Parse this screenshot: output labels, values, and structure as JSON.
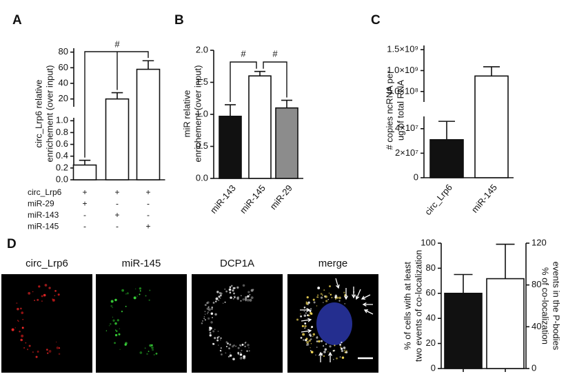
{
  "chart_data": [
    {
      "type": "bar",
      "panel_label": "A",
      "ylabel": [
        "circ_Lrp6 relative",
        "enrichement (over input)"
      ],
      "axis_segments": [
        {
          "ylim": [
            0,
            1.05
          ],
          "yticks": [
            {
              "value": 0,
              "label": "0.0"
            },
            0.2,
            0.4,
            0.6,
            0.8,
            {
              "value": 1,
              "label": "1.0"
            }
          ]
        },
        {
          "ylim": [
            10,
            85
          ],
          "yticks": [
            20,
            40,
            60,
            80
          ]
        }
      ],
      "series": [
        {
          "values": [
            0.25,
            20,
            58
          ],
          "errors": [
            0.08,
            8,
            11
          ],
          "color": "#ffffff"
        }
      ],
      "annotations": [
        "#"
      ],
      "condition_table": {
        "rows": [
          {
            "label": "circ_Lrp6",
            "cells": [
              "+",
              "+",
              "+"
            ]
          },
          {
            "label": "miR-29",
            "cells": [
              "+",
              "-",
              "-"
            ]
          },
          {
            "label": "miR-143",
            "cells": [
              "-",
              "+",
              "-"
            ]
          },
          {
            "label": "miR-145",
            "cells": [
              "-",
              "-",
              "+"
            ]
          }
        ]
      }
    },
    {
      "type": "bar",
      "panel_label": "B",
      "ylabel": [
        "miR relative",
        "enrichement (over input)"
      ],
      "categories": [
        "miR-143",
        "miR-145",
        "miR-29"
      ],
      "ylim": [
        0,
        2
      ],
      "yticks": [
        {
          "value": 0,
          "label": "0.0"
        },
        0.5,
        {
          "value": 1,
          "label": "1.0"
        },
        1.5,
        {
          "value": 2,
          "label": "2.0"
        }
      ],
      "series": [
        {
          "values": [
            0.97,
            1.6,
            1.1
          ],
          "errors": [
            0.18,
            0.07,
            0.12
          ],
          "colors": [
            "#111111",
            "#ffffff",
            "#8c8c8c"
          ]
        }
      ],
      "annotations": [
        "#",
        "#"
      ]
    },
    {
      "type": "bar",
      "panel_label": "C",
      "ylabel": [
        "# copies ncRNA per",
        "ug of total RNA"
      ],
      "categories": [
        "circ_Lrp6",
        "miR-145"
      ],
      "axis_segments": [
        {
          "ylim": [
            0,
            50000000
          ],
          "yticks": [
            0,
            {
              "value": 20000000,
              "label": "2×10⁷"
            },
            {
              "value": 40000000,
              "label": "4×10⁷"
            }
          ]
        },
        {
          "ylim": [
            250000000,
            1600000000
          ],
          "yticks": [
            {
              "value": 500000000,
              "label": "5.0×10⁸"
            },
            {
              "value": 1000000000,
              "label": "1.0×10⁹"
            },
            {
              "value": 1500000000,
              "label": "1.5×10⁹"
            }
          ]
        }
      ],
      "series": [
        {
          "values": [
            31000000,
            870000000
          ],
          "errors": [
            15000000,
            220000000
          ],
          "colors": [
            "#111111",
            "#ffffff"
          ]
        }
      ]
    },
    {
      "type": "bar",
      "ylabel": [
        "% of cells with at least",
        "two events of co-localization"
      ],
      "y2label": [
        "% of co-localization",
        "events in the P-bodies"
      ],
      "categories": [
        null,
        null
      ],
      "ylim": [
        0,
        100
      ],
      "yticks": [
        0,
        20,
        40,
        60,
        80,
        100
      ],
      "y2lim": [
        0,
        120
      ],
      "y2ticks": [
        0,
        40,
        80,
        120
      ],
      "series": [
        {
          "values": [
            60,
            null
          ],
          "errors": [
            15,
            null
          ],
          "color": "#111111"
        },
        {
          "values": [
            null,
            86
          ],
          "errors": [
            null,
            33
          ],
          "color": "#ffffff",
          "axis": "y2"
        }
      ]
    }
  ],
  "microscopy": {
    "panel_label": "D",
    "channels": [
      {
        "label": "circ_Lrp6",
        "color": "#e4202a"
      },
      {
        "label": "miR-145",
        "color": "#2bb02b"
      },
      {
        "label": "DCP1A",
        "color": "#111111"
      },
      {
        "label": "merge",
        "color": "#111111"
      }
    ]
  }
}
